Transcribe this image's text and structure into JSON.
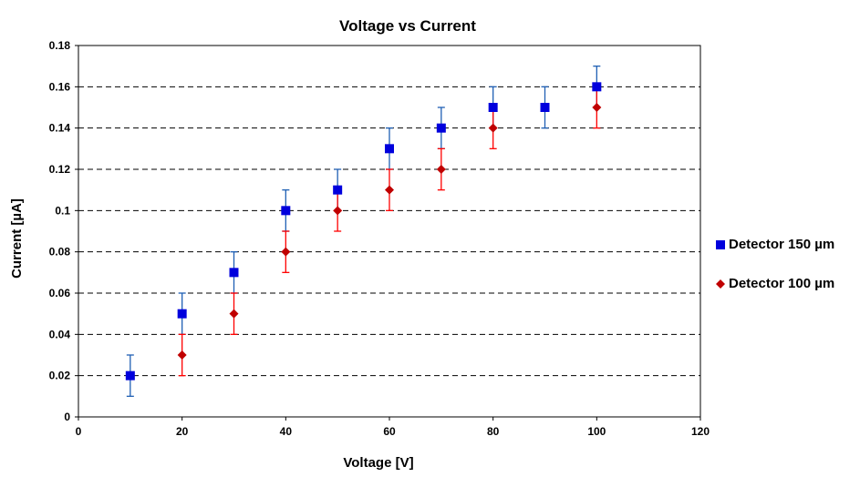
{
  "chart_data": {
    "type": "scatter",
    "title": "Voltage vs Current",
    "xlabel": "Voltage [V]",
    "ylabel": "Current [µA]",
    "xlim": [
      0,
      120
    ],
    "ylim": [
      0,
      0.18
    ],
    "xticks": [
      "0",
      "20",
      "40",
      "60",
      "80",
      "100",
      "120"
    ],
    "yticks": [
      "0",
      "0.02",
      "0.04",
      "0.06",
      "0.08",
      "0.1",
      "0.12",
      "0.14",
      "0.16",
      "0.18"
    ],
    "grid": "horizontal dashed",
    "legend_position": "right",
    "series": [
      {
        "name": "Detector 150 µm",
        "color": "#0000dd",
        "errorbar_color": "#1f5fb4",
        "marker": "square",
        "x": [
          10,
          20,
          30,
          40,
          50,
          60,
          70,
          80,
          90,
          100
        ],
        "y": [
          0.02,
          0.05,
          0.07,
          0.1,
          0.11,
          0.13,
          0.14,
          0.15,
          0.15,
          0.16
        ],
        "error": 0.01
      },
      {
        "name": "Detector 100 µm",
        "color": "#c00000",
        "errorbar_color": "#ff0000",
        "marker": "diamond",
        "x": [
          20,
          30,
          40,
          50,
          60,
          70,
          80,
          100
        ],
        "y": [
          0.03,
          0.05,
          0.08,
          0.1,
          0.11,
          0.12,
          0.14,
          0.15
        ],
        "error": 0.01
      }
    ]
  }
}
